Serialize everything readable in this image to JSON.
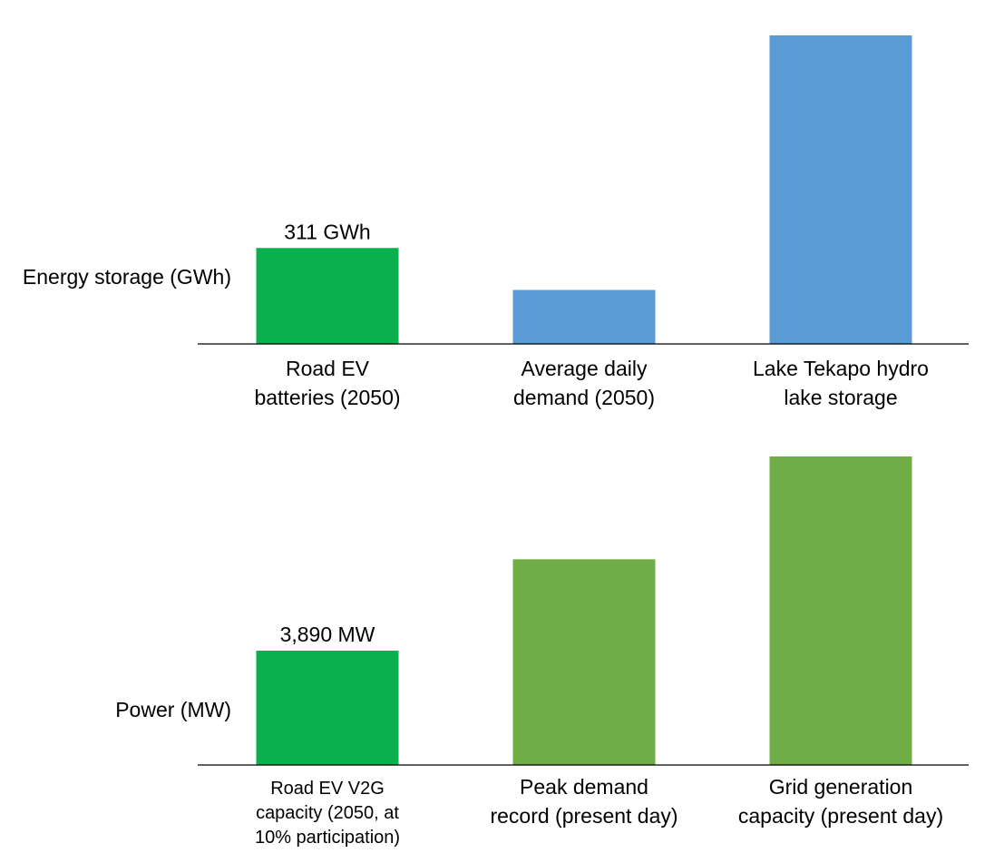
{
  "chart_data": [
    {
      "type": "bar",
      "title": "",
      "ylabel": "Energy storage (GWh)",
      "xlabel": "",
      "categories": [
        [
          "Road EV",
          "batteries (2050)"
        ],
        [
          "Average daily",
          "demand (2050)"
        ],
        [
          "Lake Tekapo hydro",
          "lake storage"
        ]
      ],
      "values": [
        311,
        175,
        1000
      ],
      "data_labels": [
        "311 GWh",
        "",
        ""
      ],
      "colors": [
        "#0bb04e",
        "#5b9bd5",
        "#5b9bd5"
      ],
      "ylim": [
        0,
        1000
      ],
      "grid": false
    },
    {
      "type": "bar",
      "title": "",
      "ylabel": "Power (MW)",
      "xlabel": "",
      "categories": [
        [
          "Road EV V2G",
          "capacity (2050, at",
          "10% participation)"
        ],
        [
          "Peak demand",
          "record (present day)"
        ],
        [
          "Grid generation",
          "capacity (present day)"
        ]
      ],
      "values": [
        3890,
        7000,
        10500
      ],
      "data_labels": [
        "3,890 MW",
        "",
        ""
      ],
      "colors": [
        "#0bb04e",
        "#70ad47",
        "#70ad47"
      ],
      "ylim": [
        0,
        10500
      ],
      "grid": false
    }
  ]
}
